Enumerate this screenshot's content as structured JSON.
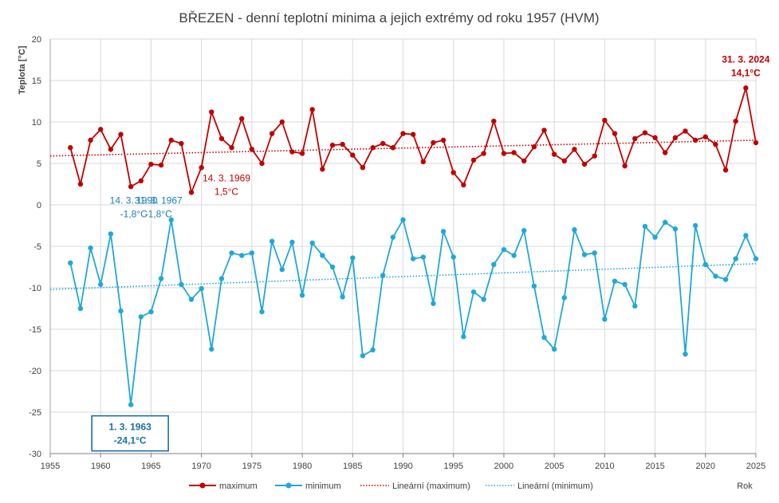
{
  "chart_data": {
    "type": "line",
    "title": "BŘEZEN - denní teplotní minima a jejich extrémy od roku 1957 (HVM)",
    "ylabel": "Teplota [°C]",
    "xlabel": "Rok",
    "xlim": [
      1955,
      2025
    ],
    "ylim": [
      -30,
      20
    ],
    "x_ticks": [
      1955,
      1960,
      1965,
      1970,
      1975,
      1980,
      1985,
      1990,
      1995,
      2000,
      2005,
      2010,
      2015,
      2020,
      2025
    ],
    "y_ticks": [
      -30,
      -25,
      -20,
      -15,
      -10,
      -5,
      0,
      5,
      10,
      15,
      20
    ],
    "grid": true,
    "legend_position": "bottom",
    "years": [
      1957,
      1958,
      1959,
      1960,
      1961,
      1962,
      1963,
      1964,
      1965,
      1966,
      1967,
      1968,
      1969,
      1970,
      1971,
      1972,
      1973,
      1974,
      1975,
      1976,
      1977,
      1978,
      1979,
      1980,
      1981,
      1982,
      1983,
      1984,
      1985,
      1986,
      1987,
      1988,
      1989,
      1990,
      1991,
      1992,
      1993,
      1994,
      1995,
      1996,
      1997,
      1998,
      1999,
      2000,
      2001,
      2002,
      2003,
      2004,
      2005,
      2006,
      2007,
      2008,
      2009,
      2010,
      2011,
      2012,
      2013,
      2014,
      2015,
      2016,
      2017,
      2018,
      2019,
      2020,
      2021,
      2022,
      2023,
      2024,
      2025
    ],
    "series": [
      {
        "name": "maximum",
        "color": "#c00000",
        "values": [
          6.9,
          2.5,
          7.8,
          9.1,
          6.7,
          8.5,
          2.2,
          2.9,
          4.9,
          4.8,
          7.8,
          7.4,
          1.5,
          4.5,
          11.2,
          8.0,
          6.9,
          10.4,
          6.7,
          5.0,
          8.6,
          10.0,
          6.4,
          6.2,
          11.5,
          4.3,
          7.2,
          7.3,
          6.0,
          4.5,
          6.9,
          7.4,
          6.9,
          8.6,
          8.5,
          5.2,
          7.5,
          7.8,
          3.9,
          2.4,
          5.4,
          6.2,
          10.1,
          6.2,
          6.3,
          5.3,
          7.0,
          9.0,
          6.1,
          5.3,
          6.7,
          4.9,
          5.9,
          10.2,
          8.6,
          4.7,
          8.0,
          8.7,
          8.1,
          6.3,
          8.1,
          8.9,
          7.8,
          8.2,
          7.3,
          4.2,
          10.1,
          14.1,
          7.5
        ]
      },
      {
        "name": "minimum",
        "color": "#1fa8d8",
        "values": [
          -7.0,
          -12.5,
          -5.2,
          -9.6,
          -3.5,
          -12.8,
          -24.1,
          -13.5,
          -12.9,
          -8.9,
          -1.8,
          -9.6,
          -11.4,
          -10.1,
          -17.4,
          -8.9,
          -5.8,
          -6.1,
          -5.8,
          -12.9,
          -4.4,
          -7.8,
          -4.5,
          -10.9,
          -4.6,
          -6.1,
          -7.5,
          -11.1,
          -6.4,
          -18.2,
          -17.5,
          -8.5,
          -3.9,
          -1.8,
          -6.5,
          -6.3,
          -11.9,
          -3.2,
          -6.3,
          -15.9,
          -10.5,
          -11.4,
          -7.2,
          -5.4,
          -6.1,
          -3.1,
          -9.8,
          -16.0,
          -17.4,
          -11.2,
          -3.0,
          -6.0,
          -5.8,
          -13.8,
          -9.2,
          -9.6,
          -12.2,
          -2.6,
          -3.9,
          -2.1,
          -2.9,
          -18.0,
          -2.5,
          -7.2,
          -8.6,
          -9.0,
          -6.5,
          -3.7,
          -6.5
        ]
      }
    ],
    "trendlines": [
      {
        "name": "Lineární (maximum)",
        "color": "#c00000",
        "start": [
          1955,
          5.9
        ],
        "end": [
          2025,
          7.8
        ]
      },
      {
        "name": "Lineární (minimum)",
        "color": "#1fa8d8",
        "start": [
          1955,
          -10.2
        ],
        "end": [
          2025,
          -7.1
        ]
      }
    ],
    "annotations": [
      {
        "line1": "31. 3. 2024",
        "line2": "14,1°C",
        "series": "maximum",
        "bold": true,
        "boxed": false
      },
      {
        "line1": "14. 3. 1969",
        "line2": "1,5°C",
        "series": "maximum",
        "bold": false,
        "boxed": false
      },
      {
        "line1": "31. 3. 1967",
        "line2": "-1,8°C",
        "series": "minimum",
        "bold": false,
        "boxed": false
      },
      {
        "line1": "14. 3. 1990",
        "line2": "-1,8°C",
        "series": "minimum",
        "bold": false,
        "boxed": false
      },
      {
        "line1": "1. 3. 1963",
        "line2": "-24,1°C",
        "series": "minimum",
        "bold": true,
        "boxed": true
      }
    ]
  }
}
